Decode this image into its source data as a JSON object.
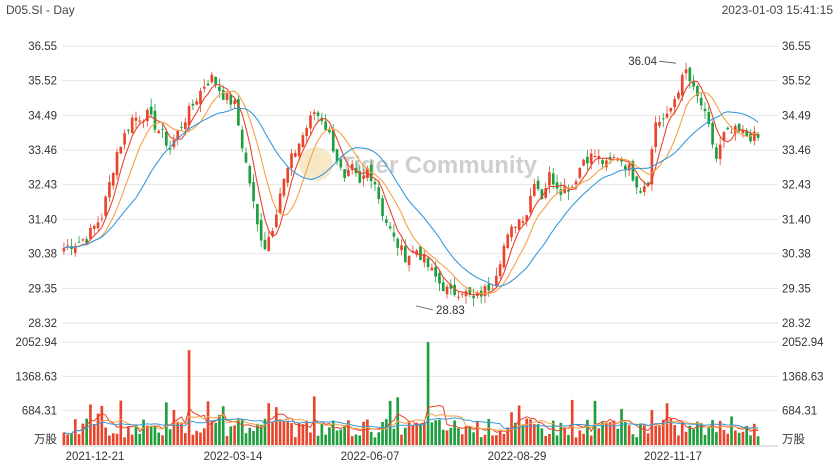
{
  "header": {
    "ticker_label": "D05.SI - Day",
    "timestamp": "2023-01-03 15:41:15"
  },
  "watermark": "Tiger Community",
  "colors": {
    "up": "#e8452c",
    "down": "#1e9e3e",
    "ma5": "#e8452c",
    "ma10": "#f4a24a",
    "ma20": "#3a9ad9",
    "grid": "#e6e6e6"
  },
  "chart_data": [
    {
      "type": "candlestick",
      "title": "D05.SI - Day",
      "y_ticks": [
        "36.55",
        "35.52",
        "34.49",
        "33.46",
        "32.43",
        "31.40",
        "30.38",
        "29.35",
        "28.32"
      ],
      "ylim": [
        28.32,
        36.55
      ],
      "x_ticks": [
        "2021-12-21",
        "2022-03-14",
        "2022-06-07",
        "2022-08-29",
        "2022-11-17"
      ],
      "annotations": [
        {
          "label": "36.04",
          "value": 36.04,
          "kind": "high"
        },
        {
          "label": "28.83",
          "value": 28.83,
          "kind": "low"
        }
      ],
      "close_path": [
        [
          0,
          30.55
        ],
        [
          6,
          30.85
        ],
        [
          10,
          31.5
        ],
        [
          14,
          33.4
        ],
        [
          18,
          34.4
        ],
        [
          22,
          34.5
        ],
        [
          26,
          33.9
        ],
        [
          28,
          33.5
        ],
        [
          31,
          34.2
        ],
        [
          34,
          34.8
        ],
        [
          37,
          35.4
        ],
        [
          39,
          35.6
        ],
        [
          42,
          35.1
        ],
        [
          45,
          34.8
        ],
        [
          47,
          33.6
        ],
        [
          49,
          32.5
        ],
        [
          51,
          31.2
        ],
        [
          53,
          30.6
        ],
        [
          55,
          31.2
        ],
        [
          57,
          32.2
        ],
        [
          60,
          33.2
        ],
        [
          63,
          33.9
        ],
        [
          66,
          34.6
        ],
        [
          68,
          34.4
        ],
        [
          70,
          33.9
        ],
        [
          72,
          33.2
        ],
        [
          74,
          32.5
        ],
        [
          76,
          32.9
        ],
        [
          78,
          32.4
        ],
        [
          80,
          32.9
        ],
        [
          82,
          32.5
        ],
        [
          84,
          31.6
        ],
        [
          87,
          30.8
        ],
        [
          90,
          30.3
        ],
        [
          93,
          30.5
        ],
        [
          96,
          30.0
        ],
        [
          99,
          29.5
        ],
        [
          102,
          29.2
        ],
        [
          105,
          29.3
        ],
        [
          108,
          29.0
        ],
        [
          111,
          29.3
        ],
        [
          113,
          29.5
        ],
        [
          116,
          30.6
        ],
        [
          119,
          31.3
        ],
        [
          122,
          31.6
        ],
        [
          124,
          32.6
        ],
        [
          126,
          32.1
        ],
        [
          128,
          32.7
        ],
        [
          131,
          32.3
        ],
        [
          134,
          32.4
        ],
        [
          137,
          33.2
        ],
        [
          140,
          33.3
        ],
        [
          143,
          33.0
        ],
        [
          146,
          33.3
        ],
        [
          149,
          32.9
        ],
        [
          152,
          32.3
        ],
        [
          154,
          32.6
        ],
        [
          156,
          34.3
        ],
        [
          159,
          34.4
        ],
        [
          162,
          35.3
        ],
        [
          164,
          35.8
        ],
        [
          166,
          35.2
        ],
        [
          168,
          34.8
        ],
        [
          170,
          34.1
        ],
        [
          172,
          33.2
        ],
        [
          174,
          33.9
        ],
        [
          177,
          34.0
        ],
        [
          180,
          33.9
        ],
        [
          183,
          33.8
        ]
      ],
      "volume_series": {
        "y_ticks": [
          "2052.94",
          "1368.63",
          "684.31"
        ],
        "unit_label": "万股",
        "ylim": [
          0,
          2052.94
        ],
        "peaks": [
          {
            "index": 33,
            "value": 1890
          },
          {
            "index": 96,
            "value": 2052
          }
        ]
      }
    }
  ]
}
